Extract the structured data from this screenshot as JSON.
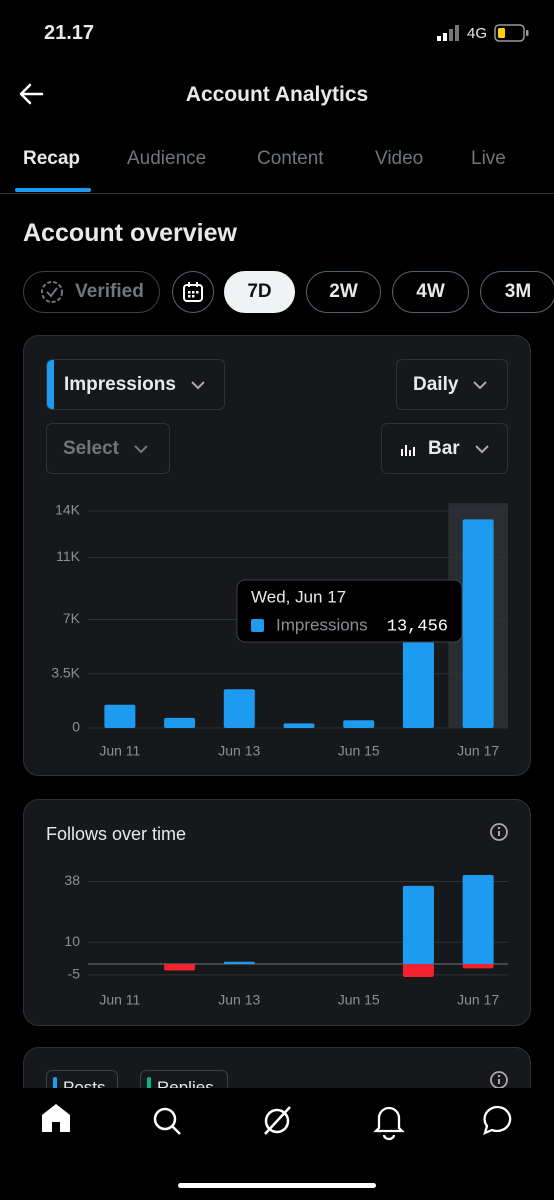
{
  "status": {
    "time": "21.17",
    "network": "4G"
  },
  "header": {
    "title": "Account Analytics"
  },
  "tabs": [
    "Recap",
    "Audience",
    "Content",
    "Video",
    "Live"
  ],
  "section_title": "Account overview",
  "filters": [
    "Verified",
    "7D",
    "2W",
    "4W",
    "3M"
  ],
  "impressions_card": {
    "metric": "Impressions",
    "interval": "Daily",
    "select": "Select",
    "chart_type": "Bar"
  },
  "third_card": {
    "legend": [
      "Posts",
      "Replies"
    ]
  },
  "chart_data": [
    {
      "type": "bar",
      "categories": [
        "Jun 11",
        null,
        "Jun 13",
        null,
        "Jun 15",
        null,
        "Jun 17"
      ],
      "values": [
        1500,
        650,
        2500,
        300,
        500,
        6500,
        13456
      ],
      "color": "#1d9bf0",
      "ylim": [
        0,
        14000
      ],
      "yticks": [
        0,
        {
          "value": 3500,
          "label": "3.5K"
        },
        {
          "value": 7000,
          "label": "7K"
        },
        {
          "value": 11000,
          "label": "11K"
        },
        {
          "value": 14000,
          "label": "14K"
        }
      ],
      "grid": true,
      "tooltip": {
        "title": "Wed, Jun 17",
        "series": "Impressions",
        "label": "13,456"
      }
    },
    {
      "type": "bar",
      "title": "Follows over time",
      "categories": [
        "Jun 11",
        null,
        "Jun 13",
        null,
        "Jun 15",
        null,
        "Jun 17"
      ],
      "series": [
        {
          "color": "#1d9bf0",
          "values": [
            0,
            0,
            1,
            0,
            0,
            36,
            41
          ]
        },
        {
          "color": "#f4212e",
          "values": [
            0,
            -3,
            0,
            0,
            0,
            -6,
            -2
          ]
        }
      ],
      "ylim": [
        -6,
        41
      ],
      "yticks": [
        -5,
        10,
        38
      ],
      "grid": true
    }
  ]
}
